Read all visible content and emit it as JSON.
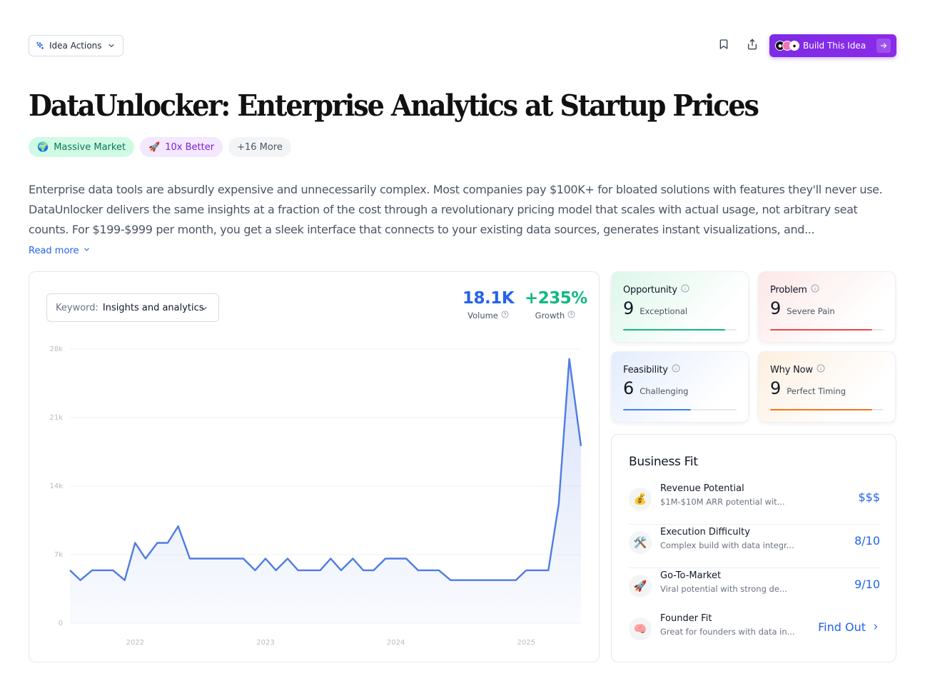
{
  "header": {
    "idea_actions_label": "Idea Actions",
    "build_label": "Build This Idea"
  },
  "title": "DataUnlocker: Enterprise Analytics at Startup Prices",
  "tags": [
    {
      "emoji": "🌍",
      "label": "Massive Market"
    },
    {
      "emoji": "🚀",
      "label": "10x Better"
    },
    {
      "label": "+16 More"
    }
  ],
  "description": "Enterprise data tools are absurdly expensive and unnecessarily complex. Most companies pay $100K+ for bloated solutions with features they'll never use. DataUnlocker delivers the same insights at a fraction of the cost through a revolutionary pricing model that scales with actual usage, not arbitrary seat counts. For $199-$999 per month, you get a sleek interface that connects to your existing data sources, generates instant visualizations, and...",
  "read_more": "Read more",
  "keyword": {
    "label": "Keyword:",
    "value": "Insights and analytics"
  },
  "metrics": {
    "volume": {
      "value": "18.1K",
      "label": "Volume",
      "color": "#2563eb"
    },
    "growth": {
      "value": "+235%",
      "label": "Growth",
      "color": "#10b981"
    }
  },
  "chart_data": {
    "type": "area",
    "y_ticks": [
      "0",
      "7k",
      "14k",
      "21k",
      "28k"
    ],
    "ylim": [
      0,
      28000
    ],
    "x_ticks": [
      {
        "label": "2022",
        "x": 2022.0
      },
      {
        "label": "2023",
        "x": 2023.0
      },
      {
        "label": "2024",
        "x": 2024.0
      },
      {
        "label": "2025",
        "x": 2025.0
      }
    ],
    "xlim": [
      2021.5,
      2025.42
    ],
    "series": [
      {
        "color": "#4f7be3",
        "points": [
          [
            2021.5,
            5400
          ],
          [
            2021.58,
            4400
          ],
          [
            2021.67,
            5400
          ],
          [
            2021.75,
            5400
          ],
          [
            2021.83,
            5400
          ],
          [
            2021.92,
            4400
          ],
          [
            2022.0,
            8200
          ],
          [
            2022.08,
            6600
          ],
          [
            2022.17,
            8200
          ],
          [
            2022.25,
            8200
          ],
          [
            2022.33,
            9900
          ],
          [
            2022.42,
            6600
          ],
          [
            2022.5,
            6600
          ],
          [
            2022.58,
            6600
          ],
          [
            2022.67,
            6600
          ],
          [
            2022.75,
            6600
          ],
          [
            2022.83,
            6600
          ],
          [
            2022.92,
            5400
          ],
          [
            2023.0,
            6600
          ],
          [
            2023.08,
            5400
          ],
          [
            2023.17,
            6600
          ],
          [
            2023.25,
            5400
          ],
          [
            2023.33,
            5400
          ],
          [
            2023.42,
            5400
          ],
          [
            2023.5,
            6600
          ],
          [
            2023.58,
            5400
          ],
          [
            2023.67,
            6600
          ],
          [
            2023.75,
            5400
          ],
          [
            2023.83,
            5400
          ],
          [
            2023.92,
            6600
          ],
          [
            2024.0,
            6600
          ],
          [
            2024.08,
            6600
          ],
          [
            2024.17,
            5400
          ],
          [
            2024.25,
            5400
          ],
          [
            2024.33,
            5400
          ],
          [
            2024.42,
            4400
          ],
          [
            2024.5,
            4400
          ],
          [
            2024.58,
            4400
          ],
          [
            2024.67,
            4400
          ],
          [
            2024.75,
            4400
          ],
          [
            2024.83,
            4400
          ],
          [
            2024.92,
            4400
          ],
          [
            2025.0,
            5400
          ],
          [
            2025.08,
            5400
          ],
          [
            2025.17,
            5400
          ],
          [
            2025.25,
            12200
          ],
          [
            2025.33,
            27000
          ],
          [
            2025.42,
            18100
          ]
        ]
      }
    ]
  },
  "scores": [
    {
      "title": "Opportunity",
      "score": "9",
      "sub": "Exceptional",
      "fraction": 0.9,
      "color": "#10b981",
      "theme": "green"
    },
    {
      "title": "Problem",
      "score": "9",
      "sub": "Severe Pain",
      "fraction": 0.9,
      "color": "#ef4444",
      "theme": "red"
    },
    {
      "title": "Feasibility",
      "score": "6",
      "sub": "Challenging",
      "fraction": 0.6,
      "color": "#3b82f6",
      "theme": "blue"
    },
    {
      "title": "Why Now",
      "score": "9",
      "sub": "Perfect Timing",
      "fraction": 0.9,
      "color": "#f97316",
      "theme": "orange"
    }
  ],
  "business_fit": {
    "title": "Business Fit",
    "rows": [
      {
        "emoji": "💰",
        "name": "Revenue Potential",
        "desc": "$1M-$10M ARR potential wit...",
        "value": "$$$"
      },
      {
        "emoji": "🛠️",
        "name": "Execution Difficulty",
        "desc": "Complex build with data integr...",
        "value": "8/10"
      },
      {
        "emoji": "🚀",
        "name": "Go-To-Market",
        "desc": "Viral potential with strong de...",
        "value": "9/10"
      },
      {
        "emoji": "🧠",
        "name": "Founder Fit",
        "desc": "Great for founders with data in...",
        "value": "Find Out"
      }
    ]
  }
}
